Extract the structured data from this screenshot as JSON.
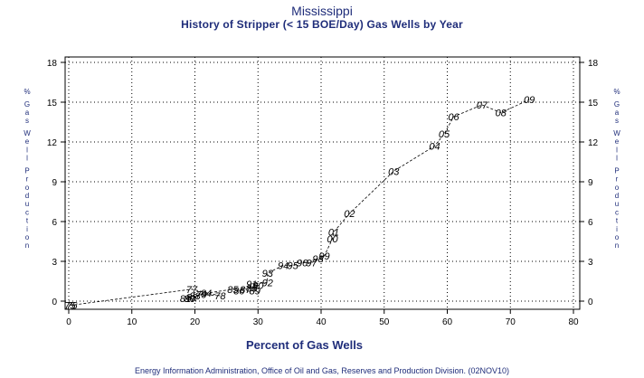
{
  "chart_data": {
    "type": "scatter",
    "title": "Mississippi",
    "subtitle": "History of Stripper (< 15 BOE/Day) Gas Wells by Year",
    "xlabel": "Percent of Gas Wells",
    "ylabel": "% Gas Well Production",
    "xlim": [
      0,
      80
    ],
    "ylim": [
      0,
      18
    ],
    "xticks": [
      0,
      10,
      20,
      30,
      40,
      50,
      60,
      70,
      80
    ],
    "yticks": [
      0,
      3,
      6,
      9,
      12,
      15,
      18
    ],
    "grid": true,
    "line_style": "dashed",
    "points": [
      {
        "label": "75",
        "x": 0.2,
        "y": -0.3
      },
      {
        "label": "76",
        "x": 0.5,
        "y": -0.3
      },
      {
        "label": "77",
        "x": 19.5,
        "y": 0.9
      },
      {
        "label": "78",
        "x": 24.0,
        "y": 0.4
      },
      {
        "label": "79",
        "x": 21.0,
        "y": 0.5
      },
      {
        "label": "80",
        "x": 19.2,
        "y": 0.2
      },
      {
        "label": "81",
        "x": 18.5,
        "y": 0.2
      },
      {
        "label": "82",
        "x": 19.5,
        "y": 0.3
      },
      {
        "label": "83",
        "x": 20.0,
        "y": 0.4
      },
      {
        "label": "84",
        "x": 21.8,
        "y": 0.6
      },
      {
        "label": "85",
        "x": 26.0,
        "y": 0.9
      },
      {
        "label": "86",
        "x": 27.0,
        "y": 0.8
      },
      {
        "label": "87",
        "x": 28.0,
        "y": 0.9
      },
      {
        "label": "88",
        "x": 29.0,
        "y": 1.0
      },
      {
        "label": "89",
        "x": 29.5,
        "y": 0.8
      },
      {
        "label": "90",
        "x": 30.0,
        "y": 1.2
      },
      {
        "label": "91",
        "x": 29.0,
        "y": 1.3
      },
      {
        "label": "92",
        "x": 31.5,
        "y": 1.4
      },
      {
        "label": "93",
        "x": 31.5,
        "y": 2.1
      },
      {
        "label": "94",
        "x": 34.0,
        "y": 2.7
      },
      {
        "label": "95",
        "x": 35.5,
        "y": 2.7
      },
      {
        "label": "96",
        "x": 37.0,
        "y": 2.9
      },
      {
        "label": "97",
        "x": 38.5,
        "y": 2.9
      },
      {
        "label": "98",
        "x": 39.5,
        "y": 3.2
      },
      {
        "label": "99",
        "x": 40.5,
        "y": 3.4
      },
      {
        "label": "00",
        "x": 41.8,
        "y": 4.7
      },
      {
        "label": "01",
        "x": 42.0,
        "y": 5.2
      },
      {
        "label": "02",
        "x": 44.5,
        "y": 6.6
      },
      {
        "label": "03",
        "x": 51.5,
        "y": 9.8
      },
      {
        "label": "04",
        "x": 58.0,
        "y": 11.7
      },
      {
        "label": "05",
        "x": 59.5,
        "y": 12.6
      },
      {
        "label": "06",
        "x": 61.0,
        "y": 13.9
      },
      {
        "label": "07",
        "x": 65.5,
        "y": 14.8
      },
      {
        "label": "08",
        "x": 68.5,
        "y": 14.2
      },
      {
        "label": "09",
        "x": 73.0,
        "y": 15.2
      }
    ]
  },
  "footer": "Energy Information Administration, Office of Oil and Gas, Reserves and Production Division. (02NOV10)",
  "colors": {
    "text": "#1f2d7a",
    "axis": "#000000",
    "grid": "#000000",
    "line": "#000000"
  }
}
